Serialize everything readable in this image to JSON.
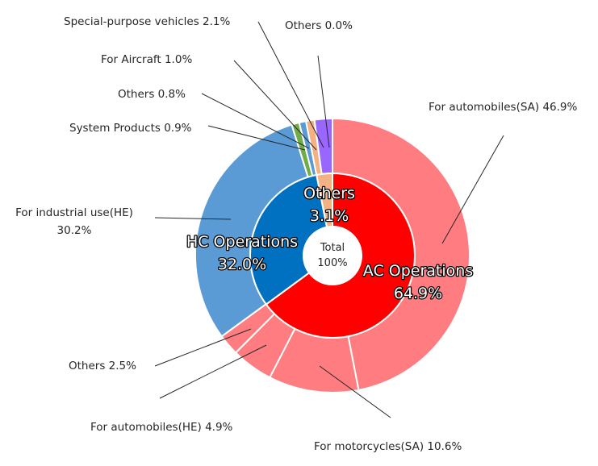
{
  "chart_data": {
    "type": "donut",
    "center": {
      "line1": "Total",
      "line2": "100%"
    },
    "inner_ring": [
      {
        "id": "ac",
        "name": "AC Operations",
        "value": 64.9,
        "label_line1": "AC Operations",
        "label_line2": "64.9%",
        "color": "#ff0000"
      },
      {
        "id": "hc",
        "name": "HC Operations",
        "value": 32.0,
        "label_line1": "HC Operations",
        "label_line2": "32.0%",
        "color": "#0070c0"
      },
      {
        "id": "oth",
        "name": "Others",
        "value": 3.1,
        "label_line1": "Others",
        "label_line2": "3.1%",
        "color": "#f4b183"
      }
    ],
    "outer_ring": [
      {
        "id": "auto_sa",
        "name": "For automobiles(SA)",
        "value": 46.9,
        "label": "For automobiles(SA) 46.9%",
        "color": "#ff7c80"
      },
      {
        "id": "moto_sa",
        "name": "For motorcycles(SA)",
        "value": 10.6,
        "label": "For motorcycles(SA) 10.6%",
        "color": "#ff7c80"
      },
      {
        "id": "auto_he",
        "name": "For automobiles(HE)",
        "value": 4.9,
        "label": "For automobiles(HE) 4.9%",
        "color": "#ff7c80"
      },
      {
        "id": "others_ac",
        "name": "Others",
        "value": 2.5,
        "label": "Others 2.5%",
        "color": "#ff7c80"
      },
      {
        "id": "ind_he",
        "name": "For industrial use(HE)",
        "value": 30.2,
        "label_line1": "For industrial use(HE)",
        "label_line2": "30.2%",
        "color": "#5b9bd5"
      },
      {
        "id": "sys",
        "name": "System Products",
        "value": 0.9,
        "label": "System Products 0.9%",
        "color": "#70ad47"
      },
      {
        "id": "others_hc",
        "name": "Others",
        "value": 0.8,
        "label": "Others 0.8%",
        "color": "#5b9bd5"
      },
      {
        "id": "aircraft",
        "name": "For Aircraft",
        "value": 1.0,
        "label": "For Aircraft 1.0%",
        "color": "#f4b183"
      },
      {
        "id": "special",
        "name": "Special-purpose vehicles",
        "value": 2.1,
        "label": "Special-purpose vehicles 2.1%",
        "color": "#9966ff"
      },
      {
        "id": "others_oth",
        "name": "Others",
        "value": 0.0,
        "label": "Others 0.0%",
        "color": "#f4b183"
      }
    ]
  }
}
